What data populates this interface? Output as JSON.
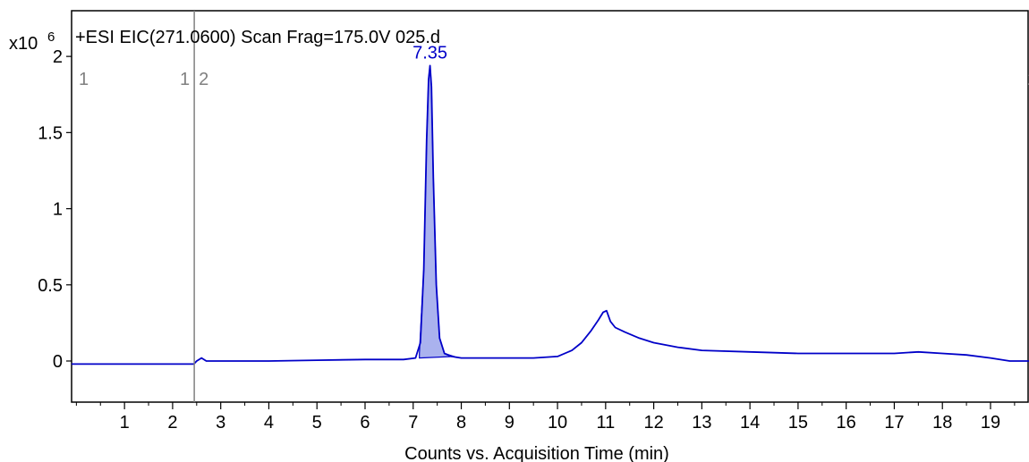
{
  "chart_data": {
    "type": "line",
    "title": "+ESI EIC(271.0600) Scan Frag=175.0V 025.d",
    "ylabel": "x10",
    "ylabel_exponent": "6",
    "xlabel": "Counts vs. Acquisition Time (min)",
    "xlim": [
      -0.1,
      19.8
    ],
    "ylim": [
      -0.27,
      2.3
    ],
    "x_ticks": [
      "1",
      "2",
      "3",
      "4",
      "5",
      "6",
      "7",
      "8",
      "9",
      "10",
      "11",
      "12",
      "13",
      "14",
      "15",
      "16",
      "17",
      "18",
      "19"
    ],
    "y_ticks": [
      "0",
      "0.5",
      "1",
      "1.5",
      "2"
    ],
    "segment_markers": {
      "time": 2.45,
      "labels": [
        "1",
        "1",
        "2",
        "2"
      ]
    },
    "peak_annotation": {
      "label": "7.35",
      "x": 7.35,
      "y": 1.94
    },
    "series": [
      {
        "color": "#0000c8",
        "x": [
          -0.1,
          2.44,
          2.5,
          2.6,
          2.7,
          3.0,
          4.0,
          5.0,
          6.0,
          6.8,
          7.05,
          7.15,
          7.22,
          7.28,
          7.32,
          7.35,
          7.38,
          7.42,
          7.48,
          7.55,
          7.65,
          7.8,
          8.0,
          8.5,
          9.0,
          9.5,
          10.0,
          10.3,
          10.5,
          10.7,
          10.85,
          10.95,
          11.02,
          11.1,
          11.2,
          11.4,
          11.7,
          12.0,
          12.5,
          13.0,
          14.0,
          15.0,
          16.0,
          17.0,
          17.5,
          18.0,
          18.5,
          19.0,
          19.4,
          19.8
        ],
        "y": [
          -0.02,
          -0.02,
          0.0,
          0.02,
          0.0,
          0.0,
          0.0,
          0.005,
          0.01,
          0.01,
          0.02,
          0.12,
          0.6,
          1.45,
          1.85,
          1.94,
          1.8,
          1.2,
          0.5,
          0.15,
          0.05,
          0.03,
          0.02,
          0.02,
          0.02,
          0.02,
          0.03,
          0.07,
          0.12,
          0.2,
          0.27,
          0.32,
          0.33,
          0.26,
          0.22,
          0.19,
          0.15,
          0.12,
          0.09,
          0.07,
          0.06,
          0.05,
          0.05,
          0.05,
          0.06,
          0.05,
          0.04,
          0.02,
          0.0,
          0.0
        ]
      }
    ],
    "peak_fill": {
      "x": [
        7.13,
        7.22,
        7.28,
        7.32,
        7.35,
        7.38,
        7.42,
        7.48,
        7.55,
        7.65,
        7.85
      ],
      "y": [
        0.05,
        0.6,
        1.45,
        1.85,
        1.94,
        1.8,
        1.2,
        0.5,
        0.15,
        0.05,
        0.03
      ],
      "baseline": [
        0.02,
        0.03
      ]
    }
  },
  "colors": {
    "trace": "#0000c8",
    "fill": "#aab2ee",
    "marker": "#808080"
  }
}
